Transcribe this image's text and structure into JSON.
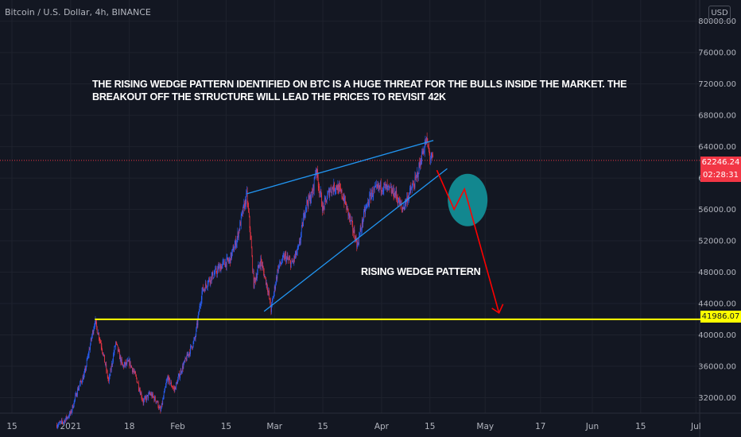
{
  "header": {
    "symbol_title": "Bitcoin / U.S. Dollar, 4h, BINANCE",
    "currency_button": "USD"
  },
  "annotations": {
    "note": "THE RISING WEDGE PATTERN IDENTIFIED ON BTC IS A HUGE THREAT FOR THE BULLS INSIDE THE MARKET. THE BREAKOUT OFF THE STRUCTURE WILL LEAD THE PRICES TO REVISIT 42K",
    "pattern_label": "RISING WEDGE PATTERN"
  },
  "price_axis": {
    "current_price": "62246.24",
    "countdown": "02:28:31",
    "level_label": "41986.07"
  },
  "colors": {
    "background": "#131722",
    "up_candle": "#2962ff",
    "down_candle": "#f23645",
    "trendline": "#2196f3",
    "support": "#ffff00",
    "projection": "#ff0000",
    "circle": "#12878f"
  },
  "chart_data": {
    "type": "candlestick",
    "ylim": [
      28500,
      82500
    ],
    "y_ticks": [
      32000,
      36000,
      40000,
      44000,
      48000,
      52000,
      56000,
      60000,
      64000,
      68000,
      72000,
      76000,
      80000
    ],
    "x_ticks": [
      "15",
      "2021",
      "18",
      "Feb",
      "15",
      "Mar",
      "15",
      "Apr",
      "15",
      "May",
      "17",
      "Jun",
      "15",
      "Jul"
    ],
    "current_price": 62246.24,
    "support_level": 41986.07,
    "price_path": [
      [
        "2020-12-28",
        28500
      ],
      [
        "2020-12-30",
        29000
      ],
      [
        "2021-01-01",
        30000
      ],
      [
        "2021-01-03",
        33000
      ],
      [
        "2021-01-05",
        35000
      ],
      [
        "2021-01-07",
        39500
      ],
      [
        "2021-01-08",
        41800
      ],
      [
        "2021-01-10",
        38500
      ],
      [
        "2021-01-12",
        34000
      ],
      [
        "2021-01-14",
        39000
      ],
      [
        "2021-01-16",
        36000
      ],
      [
        "2021-01-18",
        36500
      ],
      [
        "2021-01-20",
        34500
      ],
      [
        "2021-01-22",
        31500
      ],
      [
        "2021-01-24",
        32500
      ],
      [
        "2021-01-26",
        31500
      ],
      [
        "2021-01-27",
        30200
      ],
      [
        "2021-01-29",
        34500
      ],
      [
        "2021-01-31",
        33000
      ],
      [
        "2021-02-02",
        35500
      ],
      [
        "2021-02-04",
        37500
      ],
      [
        "2021-02-06",
        39500
      ],
      [
        "2021-02-08",
        45500
      ],
      [
        "2021-02-10",
        47000
      ],
      [
        "2021-02-12",
        48000
      ],
      [
        "2021-02-14",
        49000
      ],
      [
        "2021-02-16",
        49500
      ],
      [
        "2021-02-18",
        52000
      ],
      [
        "2021-02-20",
        56000
      ],
      [
        "2021-02-21",
        57800
      ],
      [
        "2021-02-22",
        53000
      ],
      [
        "2021-02-23",
        46500
      ],
      [
        "2021-02-25",
        49500
      ],
      [
        "2021-02-27",
        46000
      ],
      [
        "2021-02-28",
        43200
      ],
      [
        "2021-03-02",
        48500
      ],
      [
        "2021-03-04",
        50000
      ],
      [
        "2021-03-06",
        49000
      ],
      [
        "2021-03-08",
        51000
      ],
      [
        "2021-03-10",
        56500
      ],
      [
        "2021-03-12",
        58000
      ],
      [
        "2021-03-13",
        61300
      ],
      [
        "2021-03-15",
        56000
      ],
      [
        "2021-03-17",
        58500
      ],
      [
        "2021-03-19",
        59000
      ],
      [
        "2021-03-21",
        57500
      ],
      [
        "2021-03-23",
        54500
      ],
      [
        "2021-03-25",
        51500
      ],
      [
        "2021-03-27",
        55500
      ],
      [
        "2021-03-29",
        58000
      ],
      [
        "2021-04-01",
        59000
      ],
      [
        "2021-04-03",
        58500
      ],
      [
        "2021-04-05",
        58000
      ],
      [
        "2021-04-07",
        56000
      ],
      [
        "2021-04-09",
        58000
      ],
      [
        "2021-04-11",
        59800
      ],
      [
        "2021-04-13",
        63500
      ],
      [
        "2021-04-14",
        64800
      ],
      [
        "2021-04-15",
        62700
      ],
      [
        "2021-04-16",
        62246
      ]
    ],
    "trendlines": [
      {
        "name": "resistance",
        "points": [
          [
            "2021-02-21",
            58000
          ],
          [
            "2021-04-16",
            64800
          ]
        ]
      },
      {
        "name": "support",
        "points": [
          [
            "2021-02-26",
            43000
          ],
          [
            "2021-04-20",
            61200
          ]
        ]
      }
    ],
    "projection": [
      [
        "2021-04-17",
        61000
      ],
      [
        "2021-04-22",
        56000
      ],
      [
        "2021-04-25",
        58600
      ],
      [
        "2021-05-05",
        42800
      ]
    ]
  }
}
